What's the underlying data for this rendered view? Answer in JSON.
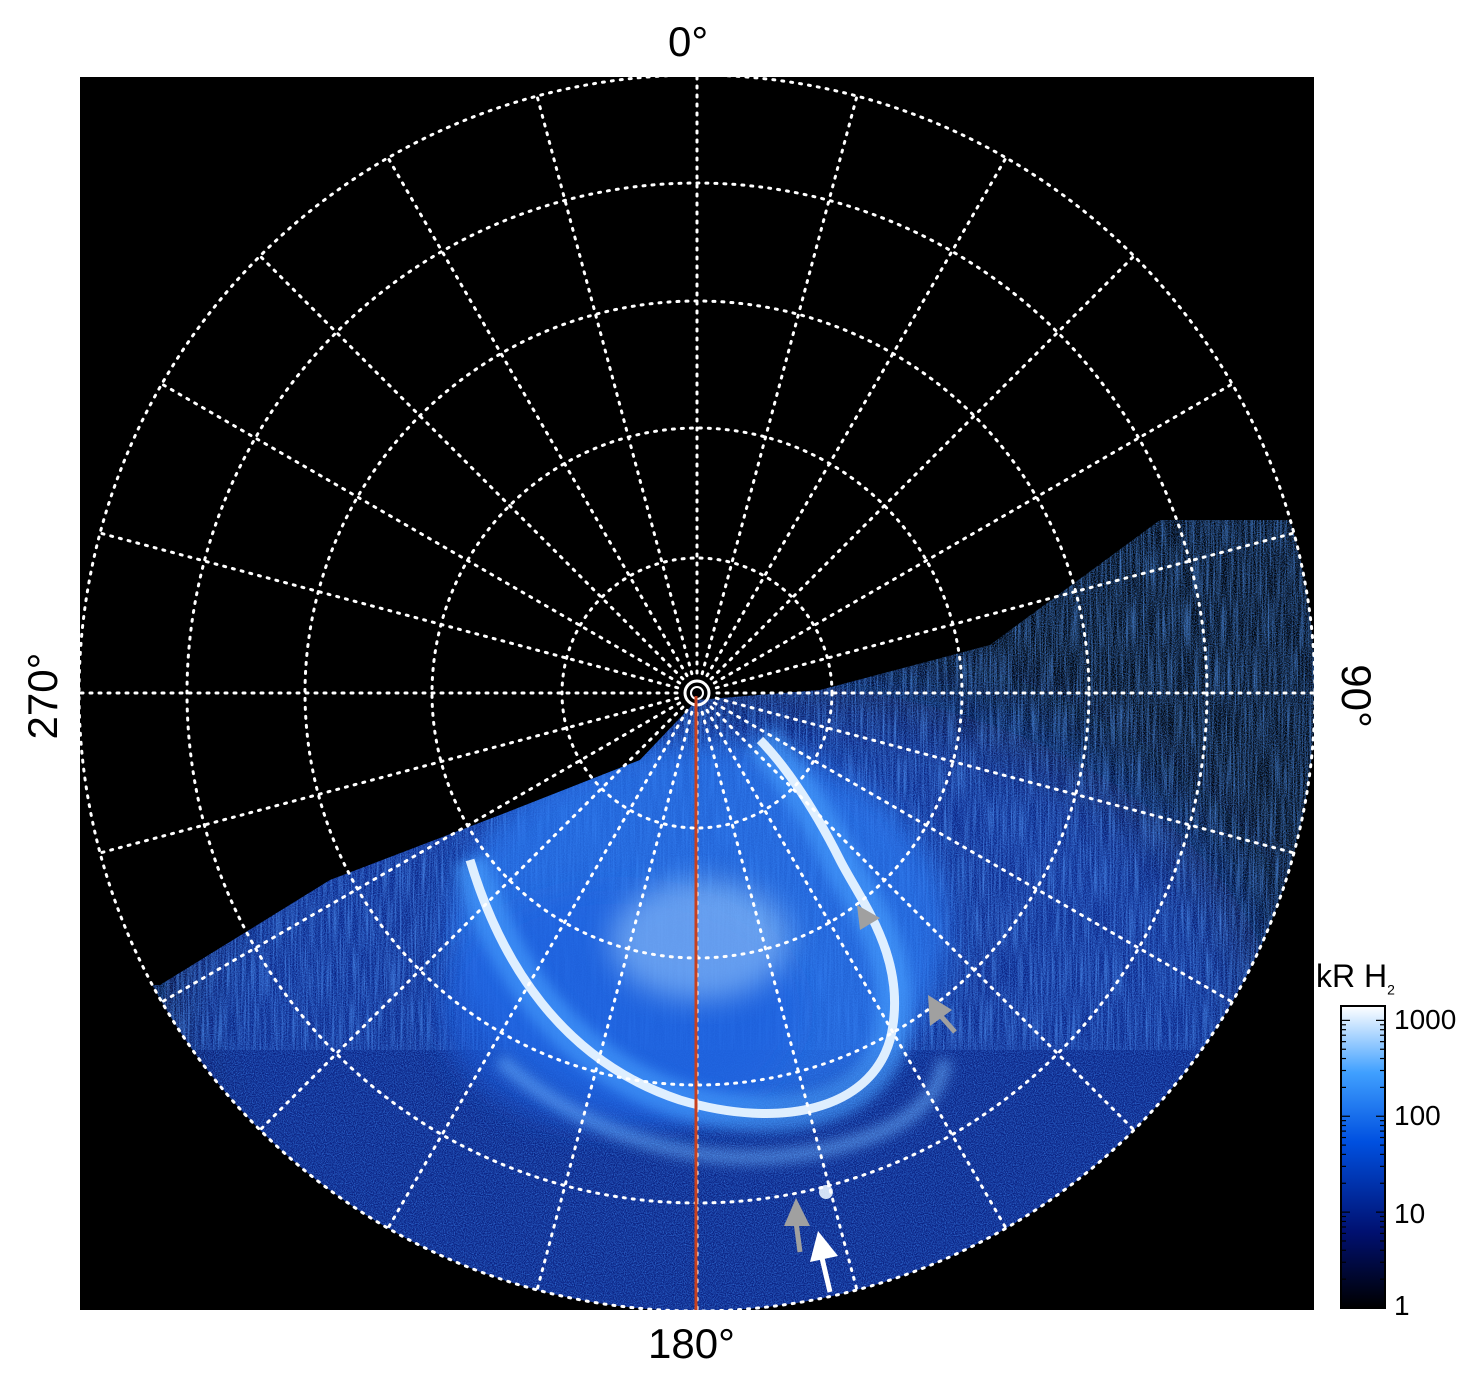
{
  "figure": {
    "labels": {
      "top": "0°",
      "bottom": "180°",
      "left": "270°",
      "right": "90°"
    },
    "colorbar": {
      "title_main": "kR H",
      "title_sub": "2",
      "ticks": [
        "1000",
        "100",
        "10",
        "1"
      ],
      "scale": "log"
    },
    "colors": {
      "background": "#000000",
      "grid": "#ffffff",
      "meridian_line": "#c8401e",
      "aurora_bright": "#e8f4ff",
      "aurora_mid": "#3a8cff",
      "aurora_dim": "#0a2a9a",
      "arrow_gray": "#a0a0a0",
      "arrow_white": "#ffffff"
    },
    "arrows": [
      "gray-arrow",
      "gray-arrow",
      "gray-arrow",
      "white-arrow"
    ]
  }
}
